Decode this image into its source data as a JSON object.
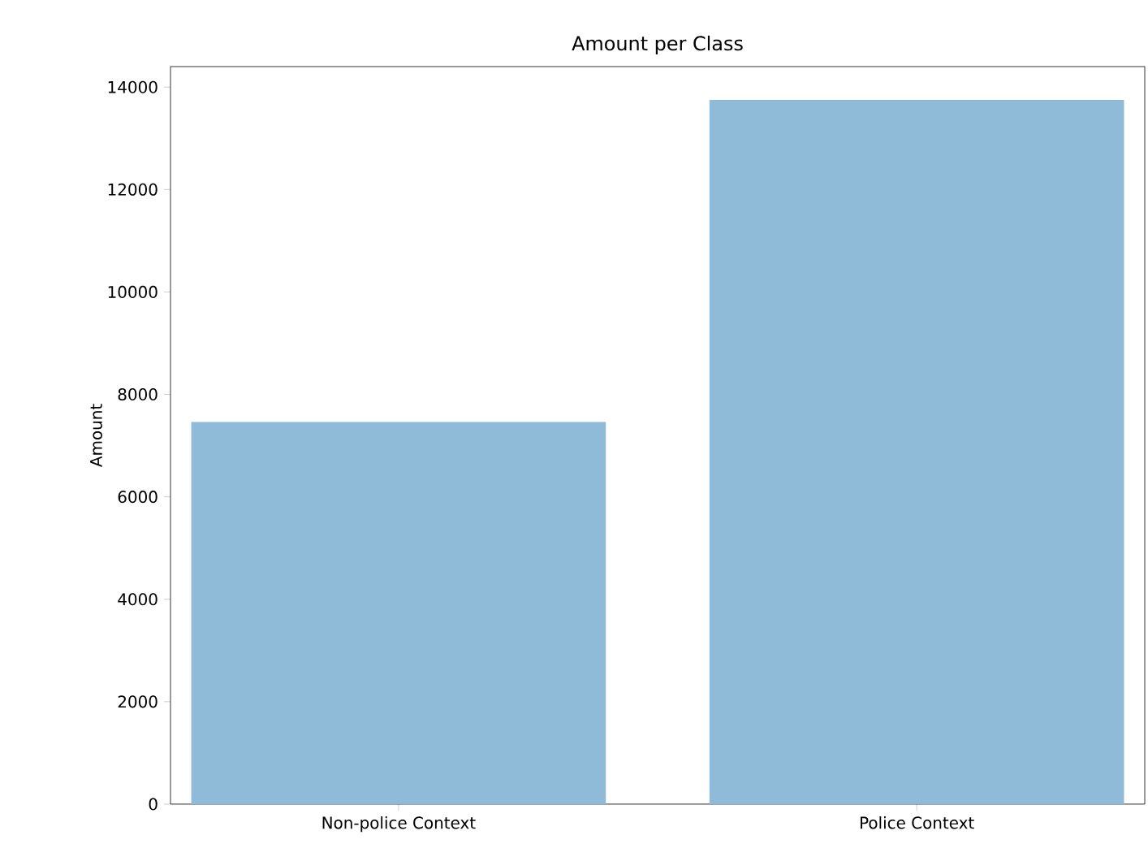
{
  "chart_data": {
    "type": "bar",
    "title": "Amount per Class",
    "ylabel": "Amount",
    "categories": [
      "Non-police Context",
      "Police Context"
    ],
    "values": [
      7460,
      13750
    ],
    "color": "#8fbbd9",
    "ylim": [
      0,
      14400
    ],
    "yticks": [
      0,
      2000,
      4000,
      6000,
      8000,
      10000,
      12000,
      14000
    ],
    "grid": false
  }
}
